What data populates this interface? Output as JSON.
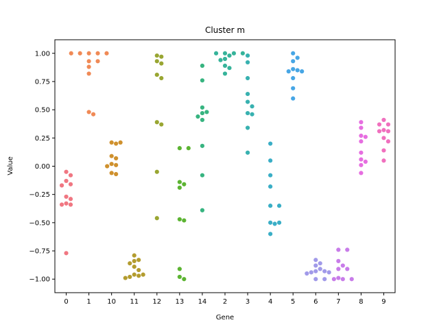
{
  "chart_data": {
    "type": "scatter",
    "kind": "swarm",
    "title": "Cluster m",
    "xlabel": "Gene",
    "ylabel": "Value",
    "ylim": [
      -1.12,
      1.12
    ],
    "yticks": [
      -1.0,
      -0.75,
      -0.5,
      -0.25,
      0.0,
      0.25,
      0.5,
      0.75,
      1.0
    ],
    "ytick_labels": [
      "−1.00",
      "−0.75",
      "−0.50",
      "−0.25",
      "0.00",
      "0.25",
      "0.50",
      "0.75",
      "1.00"
    ],
    "categories": [
      "0",
      "1",
      "10",
      "11",
      "12",
      "13",
      "14",
      "2",
      "3",
      "4",
      "5",
      "6",
      "7",
      "8",
      "9"
    ],
    "colors": [
      "#f07782",
      "#f08a56",
      "#cf912e",
      "#b39c2f",
      "#99a632",
      "#5cb432",
      "#37b480",
      "#36b39a",
      "#38b1b0",
      "#3aaec6",
      "#47a6e5",
      "#a19ae9",
      "#c87ce9",
      "#e66ee0",
      "#f070be"
    ],
    "series": [
      {
        "category": "0",
        "values": [
          -0.05,
          -0.08,
          -0.13,
          -0.16,
          -0.17,
          -0.27,
          -0.29,
          -0.33,
          -0.34,
          -0.34,
          -0.77
        ]
      },
      {
        "category": "1",
        "values": [
          1.0,
          1.0,
          1.0,
          1.0,
          1.0,
          0.93,
          0.93,
          0.88,
          0.82,
          0.48,
          0.46
        ]
      },
      {
        "category": "10",
        "values": [
          0.21,
          0.21,
          0.2,
          0.09,
          0.07,
          0.02,
          0.01,
          0.0,
          -0.06,
          -0.07
        ]
      },
      {
        "category": "11",
        "values": [
          -0.79,
          -0.83,
          -0.84,
          -0.86,
          -0.89,
          -0.92,
          -0.96,
          -0.96,
          -0.97,
          -0.98,
          -0.99
        ]
      },
      {
        "category": "12",
        "values": [
          0.98,
          0.97,
          0.93,
          0.91,
          0.81,
          0.78,
          0.39,
          0.37,
          -0.05,
          -0.46
        ]
      },
      {
        "category": "13",
        "values": [
          0.16,
          0.16,
          -0.14,
          -0.16,
          -0.19,
          -0.47,
          -0.48,
          -0.91,
          -0.98,
          -1.0
        ]
      },
      {
        "category": "14",
        "values": [
          0.89,
          0.76,
          0.52,
          0.48,
          0.47,
          0.44,
          0.41,
          0.18,
          -0.08,
          -0.39
        ]
      },
      {
        "category": "2",
        "values": [
          1.0,
          1.0,
          1.0,
          1.0,
          0.98,
          0.95,
          0.94,
          0.89,
          0.87,
          0.82
        ]
      },
      {
        "category": "3",
        "values": [
          0.98,
          0.92,
          0.78,
          0.64,
          0.57,
          0.53,
          0.47,
          0.46,
          0.34,
          0.12
        ]
      },
      {
        "category": "4",
        "values": [
          0.2,
          0.05,
          -0.08,
          -0.18,
          -0.35,
          -0.35,
          -0.5,
          -0.51,
          -0.5,
          -0.6
        ]
      },
      {
        "category": "5",
        "values": [
          1.0,
          0.96,
          0.93,
          0.86,
          0.85,
          0.84,
          0.84,
          0.78,
          0.69,
          0.6
        ]
      },
      {
        "category": "6",
        "values": [
          -0.83,
          -0.86,
          -0.88,
          -0.91,
          -0.93,
          -0.94,
          -0.94,
          -0.95,
          -0.93,
          -1.0,
          -1.0
        ]
      },
      {
        "category": "7",
        "values": [
          -0.74,
          -0.74,
          -0.84,
          -0.88,
          -0.91,
          -0.91,
          -0.99,
          -1.0,
          -1.0,
          -1.0
        ]
      },
      {
        "category": "8",
        "values": [
          0.39,
          0.34,
          0.27,
          0.26,
          0.22,
          0.12,
          0.06,
          0.04,
          0.01,
          -0.06
        ]
      },
      {
        "category": "9",
        "values": [
          0.41,
          0.37,
          0.37,
          0.32,
          0.31,
          0.31,
          0.25,
          0.22,
          0.14,
          0.05
        ]
      }
    ]
  }
}
